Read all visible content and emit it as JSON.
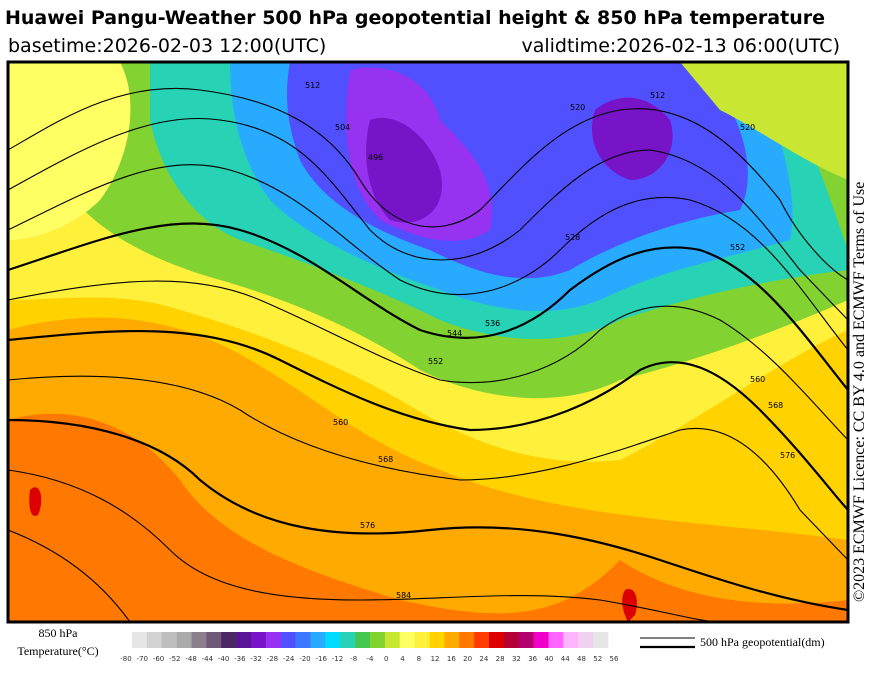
{
  "header": {
    "title": "Huawei Pangu-Weather 500 hPa geopotential height & 850 hPa temperature",
    "basetime": "basetime:2026-02-03 12:00(UTC)",
    "validtime": "validtime:2026-02-13 06:00(UTC)"
  },
  "licence": "©2023 ECMWF Licence: CC BY 4.0 and ECMWF Terms of Use",
  "colorbar": {
    "title_line1": "850 hPa",
    "title_line2": "Temperature(°C)",
    "ticks": [
      -80,
      -70,
      -60,
      -52,
      -48,
      -44,
      -40,
      -36,
      -32,
      -28,
      -24,
      -20,
      -16,
      -12,
      -8,
      -4,
      0,
      4,
      8,
      12,
      16,
      20,
      24,
      28,
      32,
      36,
      40,
      44,
      48,
      52,
      56
    ],
    "colors": [
      "#e6e6e6",
      "#d2d2d2",
      "#bebebe",
      "#aaaaaa",
      "#8c7f8c",
      "#6e5a78",
      "#4b2864",
      "#5a1496",
      "#7814c8",
      "#9632f0",
      "#5050ff",
      "#3c78ff",
      "#28aaff",
      "#00dcff",
      "#28d2b4",
      "#46c850",
      "#82d232",
      "#c8e632",
      "#ffff64",
      "#fff03c",
      "#ffd200",
      "#ffaa00",
      "#ff7800",
      "#ff3c00",
      "#dc0000",
      "#b40032",
      "#b4006e",
      "#f000c8",
      "#ff64ff",
      "#ffb4ff",
      "#f0d2f0",
      "#e6e6e6"
    ]
  },
  "legend": {
    "label": "500 hPa geopotential(dm)"
  },
  "contour_labels": [
    "512",
    "504",
    "496",
    "520",
    "528",
    "536",
    "544",
    "552",
    "560",
    "568",
    "576",
    "584",
    "560",
    "568",
    "576",
    "552",
    "512",
    "520"
  ]
}
